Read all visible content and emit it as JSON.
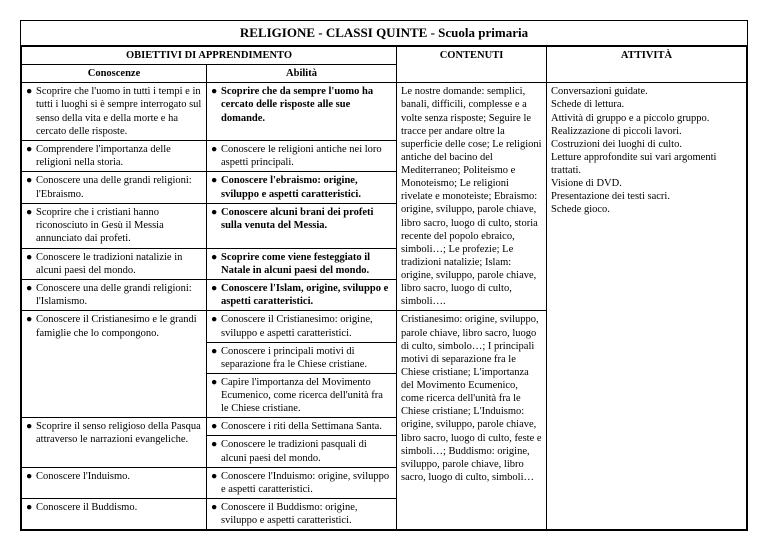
{
  "title": "RELIGIONE - CLASSI QUINTE - Scuola primaria",
  "headers": {
    "obiettivi": "OBIETTIVI DI APPRENDIMENTO",
    "conoscenze": "Conoscenze",
    "abilita": "Abilità",
    "contenuti": "CONTENUTI",
    "attivita": "ATTIVITÀ"
  },
  "rows": [
    {
      "conoscenza": "Scoprire che l'uomo in tutti i tempi e in tutti i luoghi si è sempre interrogato sul senso della vita e della morte e ha cercato delle risposte.",
      "abilita": [
        {
          "text": "Scoprire che da sempre l'uomo ha cercato delle risposte alle sue domande.",
          "bold": true
        }
      ]
    },
    {
      "conoscenza": "Comprendere l'importanza delle religioni nella storia.",
      "abilita": [
        {
          "text": "Conoscere le religioni antiche nei loro aspetti principali.",
          "bold": false
        }
      ]
    },
    {
      "conoscenza": "Conoscere una delle grandi religioni: l'Ebraismo.",
      "abilita": [
        {
          "text": "Conoscere l'ebraismo: origine, sviluppo e aspetti caratteristici.",
          "bold": true
        }
      ]
    },
    {
      "conoscenza": "Scoprire che i cristiani hanno riconosciuto in Gesù il Messia annunciato dai profeti.",
      "abilita": [
        {
          "text": "Conoscere alcuni brani dei profeti sulla venuta del Messia.",
          "bold": true
        }
      ]
    },
    {
      "conoscenza": "Conoscere le tradizioni natalizie in alcuni paesi del mondo.",
      "abilita": [
        {
          "text": "Scoprire come viene festeggiato il Natale in alcuni paesi del mondo.",
          "bold": true
        }
      ]
    },
    {
      "conoscenza": "Conoscere una delle grandi religioni: l'Islamismo.",
      "abilita": [
        {
          "text": "Conoscere l'Islam, origine, sviluppo e aspetti caratteristici.",
          "bold": true
        }
      ]
    },
    {
      "conoscenza": "Conoscere il Cristianesimo e le grandi famiglie che lo compongono.",
      "abilita": [
        {
          "text": "Conoscere il Cristianesimo: origine, sviluppo e aspetti caratteristici.",
          "bold": false
        },
        {
          "text": "Conoscere i principali motivi di separazione fra le Chiese cristiane.",
          "bold": false
        },
        {
          "text": "Capire l'importanza del Movimento Ecumenico, come ricerca dell'unità fra le Chiese cristiane.",
          "bold": false
        }
      ]
    },
    {
      "conoscenza": "Scoprire il senso religioso della Pasqua attraverso le narrazioni evangeliche.",
      "abilita": [
        {
          "text": "Conoscere i riti della Settimana Santa.",
          "bold": false
        },
        {
          "text": "Conoscere le tradizioni pasquali di alcuni paesi del mondo.",
          "bold": false
        }
      ]
    },
    {
      "conoscenza": "Conoscere l'Induismo.",
      "abilita": [
        {
          "text": "Conoscere l'Induismo: origine, sviluppo e aspetti caratteristici.",
          "bold": false
        }
      ]
    },
    {
      "conoscenza": "Conoscere il Buddismo.",
      "abilita": [
        {
          "text": "Conoscere il Buddismo: origine, sviluppo e aspetti caratteristici.",
          "bold": false
        }
      ]
    }
  ],
  "contenuti_blocks": [
    {
      "span": 6,
      "text": "Le nostre domande: semplici, banali, difficili, complesse e a volte senza risposte; Seguire le tracce per andare oltre la superficie delle cose; Le religioni antiche del bacino del Mediterraneo; Politeismo e Monoteismo; Le religioni rivelate e monoteiste; Ebraismo: origine, sviluppo, parole chiave, libro sacro, luogo di culto, storia recente del popolo ebraico, simboli…; Le profezie; Le tradizioni natalizie; Islam: origine, sviluppo, parole chiave, libro sacro, luogo di culto, simboli…."
    },
    {
      "span": 4,
      "text": "Cristianesimo: origine, sviluppo, parole chiave, libro sacro, luogo di culto, simbolo…; I principali motivi di separazione fra le Chiese cristiane; L'importanza del Movimento Ecumenico, come ricerca dell'unità fra le Chiese cristiane; L'Induismo: origine, sviluppo, parole chiave, libro sacro, luogo di culto, feste e simboli…; Buddismo: origine, sviluppo, parole chiave, libro sacro, luogo di culto, simboli…"
    }
  ],
  "attivita_lines": [
    "Conversazioni guidate.",
    "Schede di lettura.",
    "Attività di gruppo e a piccolo gruppo.",
    "Realizzazione di piccoli lavori.",
    "Costruzioni dei luoghi di culto.",
    "Letture approfondite sui vari argomenti trattati.",
    "Visione di DVD.",
    "Presentazione dei testi sacri.",
    "Schede gioco."
  ]
}
